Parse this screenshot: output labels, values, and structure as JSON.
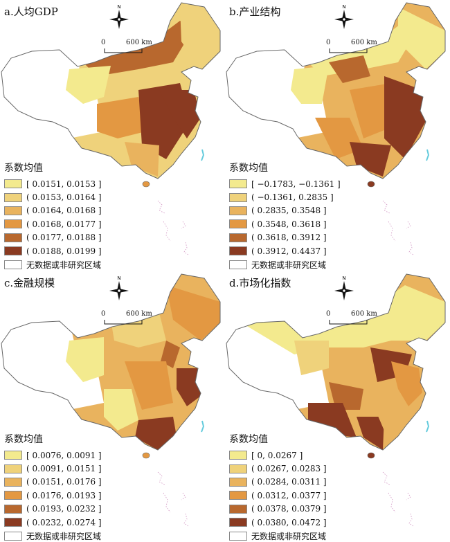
{
  "panels": [
    {
      "title": "a.人均GDP",
      "legend_title": "系数均值",
      "classes": [
        {
          "label": "[ 0.0151, 0.0153 ]",
          "color": "#f3ea8e"
        },
        {
          "label": "( 0.0153, 0.0164 ]",
          "color": "#efd27b"
        },
        {
          "label": "( 0.0164, 0.0168 ]",
          "color": "#e9b35e"
        },
        {
          "label": "( 0.0168, 0.0177 ]",
          "color": "#e39842"
        },
        {
          "label": "( 0.0177, 0.0188 ]",
          "color": "#b8682e"
        },
        {
          "label": "( 0.0188, 0.0199 ]",
          "color": "#8a3a21"
        }
      ],
      "nodata_label": "无数据或非研究区域",
      "scale": {
        "zero": "0",
        "dist": "600 km"
      },
      "north": "N"
    },
    {
      "title": "b.产业结构",
      "legend_title": "系数均值",
      "classes": [
        {
          "label": "[ −0.1783, −0.1361 ]",
          "color": "#f3ea8e"
        },
        {
          "label": "( −0.1361, 0.2835 ]",
          "color": "#efd27b"
        },
        {
          "label": "( 0.2835, 0.3548 ]",
          "color": "#e9b35e"
        },
        {
          "label": "( 0.3548, 0.3618 ]",
          "color": "#e39842"
        },
        {
          "label": "( 0.3618, 0.3912 ]",
          "color": "#b8682e"
        },
        {
          "label": "( 0.3912, 0.4437 ]",
          "color": "#8a3a21"
        }
      ],
      "nodata_label": "无数据或非研究区域",
      "scale": {
        "zero": "0",
        "dist": "600 km"
      },
      "north": "N"
    },
    {
      "title": "c.金融规模",
      "legend_title": "系数均值",
      "classes": [
        {
          "label": "[ 0.0076, 0.0091 ]",
          "color": "#f3ea8e"
        },
        {
          "label": "( 0.0091, 0.0151 ]",
          "color": "#efd27b"
        },
        {
          "label": "( 0.0151, 0.0176 ]",
          "color": "#e9b35e"
        },
        {
          "label": "( 0.0176, 0.0193 ]",
          "color": "#e39842"
        },
        {
          "label": "( 0.0193, 0.0232 ]",
          "color": "#b8682e"
        },
        {
          "label": "( 0.0232, 0.0274 ]",
          "color": "#8a3a21"
        }
      ],
      "nodata_label": "无数据或非研究区域",
      "scale": {
        "zero": "0",
        "dist": "600 km"
      },
      "north": "N"
    },
    {
      "title": "d.市场化指数",
      "legend_title": "系数均值",
      "classes": [
        {
          "label": "[ 0, 0.0267 ]",
          "color": "#f3ea8e"
        },
        {
          "label": "( 0.0267, 0.0283 ]",
          "color": "#efd27b"
        },
        {
          "label": "( 0.0284, 0.0311 ]",
          "color": "#e9b35e"
        },
        {
          "label": "( 0.0312, 0.0377 ]",
          "color": "#e39842"
        },
        {
          "label": "( 0.0378, 0.0379 ]",
          "color": "#b8682e"
        },
        {
          "label": "( 0.0380, 0.0472 ]",
          "color": "#8a3a21"
        }
      ],
      "nodata_label": "无数据或非研究区域",
      "scale": {
        "zero": "0",
        "dist": "600 km"
      },
      "north": "N"
    }
  ]
}
